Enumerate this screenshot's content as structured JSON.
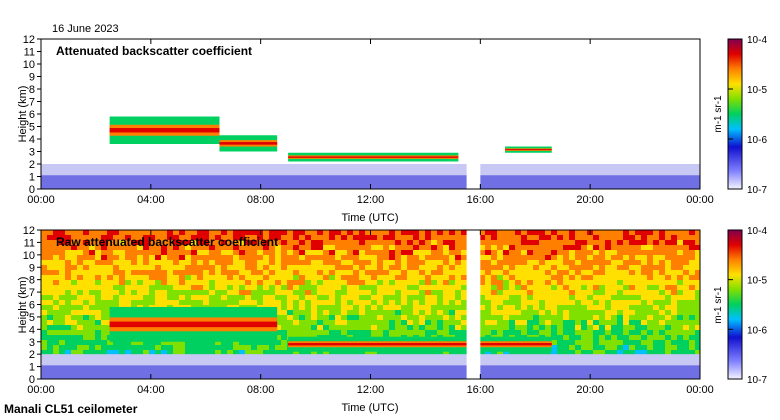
{
  "figure": {
    "date_label": "16 June 2023",
    "footer": "Manali CL51 ceilometer"
  },
  "colors": {
    "axis": "#000000",
    "data_gap": "#ffffff",
    "colorbar_stops": [
      "#f4f4ff",
      "#8080ff",
      "#1010d0",
      "#00c0ff",
      "#00d060",
      "#80e000",
      "#ffe000",
      "#ff8000",
      "#e00000",
      "#800050"
    ]
  },
  "chart_data": [
    {
      "type": "heatmap",
      "title": "Attenuated backscatter coefficient",
      "xlabel": "Time (UTC)",
      "ylabel": "Height (km)",
      "xlim_hours": [
        0,
        24
      ],
      "ylim": [
        0,
        12
      ],
      "x_ticks": [
        "00:00",
        "04:00",
        "08:00",
        "12:00",
        "16:00",
        "20:00",
        "00:00"
      ],
      "y_ticks": [
        "0",
        "1",
        "2",
        "3",
        "4",
        "5",
        "6",
        "7",
        "8",
        "9",
        "10",
        "11",
        "12"
      ],
      "colorbar": {
        "label": "m-1 sr-1",
        "ticks": [
          "10-7",
          "10-6",
          "10-5",
          "10-4"
        ]
      },
      "features": [
        {
          "name": "boundary layer",
          "start_h": 0,
          "end_h": 24,
          "top_km": 2.0
        },
        {
          "name": "elevated aerosol layer",
          "start_h": 2.5,
          "end_h": 6.5,
          "bottom_km": 3.6,
          "top_km": 5.8
        },
        {
          "name": "aerosol layer",
          "start_h": 6.5,
          "end_h": 8.6,
          "bottom_km": 3.0,
          "top_km": 4.3
        },
        {
          "name": "cloud layer",
          "start_h": 9.0,
          "end_h": 15.2,
          "bottom_km": 2.2,
          "top_km": 2.9
        },
        {
          "name": "cloud layer",
          "start_h": 16.9,
          "end_h": 18.6,
          "bottom_km": 2.9,
          "top_km": 3.4
        },
        {
          "name": "data gap",
          "start_h": 15.5,
          "end_h": 16.0
        }
      ]
    },
    {
      "type": "heatmap",
      "title": "Raw attenuated backscatter coefficient",
      "xlabel": "Time (UTC)",
      "ylabel": "Height (km)",
      "xlim_hours": [
        0,
        24
      ],
      "ylim": [
        0,
        12
      ],
      "x_ticks": [
        "00:00",
        "04:00",
        "08:00",
        "12:00",
        "16:00",
        "20:00",
        "00:00"
      ],
      "y_ticks": [
        "0",
        "1",
        "2",
        "3",
        "4",
        "5",
        "6",
        "7",
        "8",
        "9",
        "10",
        "11",
        "12"
      ],
      "colorbar": {
        "label": "m-1 sr-1",
        "ticks": [
          "10-7",
          "10-6",
          "10-5",
          "10-4"
        ]
      },
      "features": [
        {
          "name": "background noise",
          "start_h": 0,
          "end_h": 24,
          "bottom_km": 2.0,
          "top_km": 12
        },
        {
          "name": "boundary layer",
          "start_h": 0,
          "end_h": 24,
          "top_km": 2.0
        },
        {
          "name": "aerosol layer",
          "start_h": 2.5,
          "end_h": 8.6,
          "bottom_km": 3.0,
          "top_km": 5.8
        },
        {
          "name": "cloud layer",
          "start_h": 9.0,
          "end_h": 18.6,
          "bottom_km": 2.2,
          "top_km": 3.4
        },
        {
          "name": "data gap",
          "start_h": 15.5,
          "end_h": 16.0
        }
      ]
    }
  ]
}
